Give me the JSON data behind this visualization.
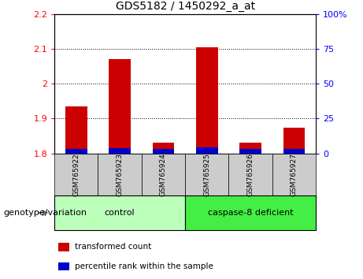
{
  "title": "GDS5182 / 1450292_a_at",
  "samples": [
    "GSM765922",
    "GSM765923",
    "GSM765924",
    "GSM765925",
    "GSM765926",
    "GSM765927"
  ],
  "red_values": [
    1.935,
    2.07,
    1.83,
    2.105,
    1.832,
    1.875
  ],
  "blue_values": [
    3.5,
    4.0,
    3.0,
    4.5,
    3.0,
    3.5
  ],
  "ylim_left": [
    1.8,
    2.2
  ],
  "ylim_right": [
    0,
    100
  ],
  "left_ticks": [
    1.8,
    1.9,
    2.0,
    2.1,
    2.2
  ],
  "right_ticks": [
    0,
    25,
    50,
    75,
    100
  ],
  "left_tick_labels": [
    "1.8",
    "1.9",
    "2",
    "2.1",
    "2.2"
  ],
  "right_tick_labels": [
    "0",
    "25",
    "50",
    "75",
    "100%"
  ],
  "bar_width": 0.5,
  "red_color": "#cc0000",
  "blue_color": "#0000cc",
  "grid_linestyle": "dotted",
  "legend_red_label": "transformed count",
  "legend_blue_label": "percentile rank within the sample",
  "genotype_label": "genotype/variation",
  "group_box_color_control": "#bbffbb",
  "group_box_color_deficient": "#44ee44",
  "xtick_bg_color": "#cccccc"
}
